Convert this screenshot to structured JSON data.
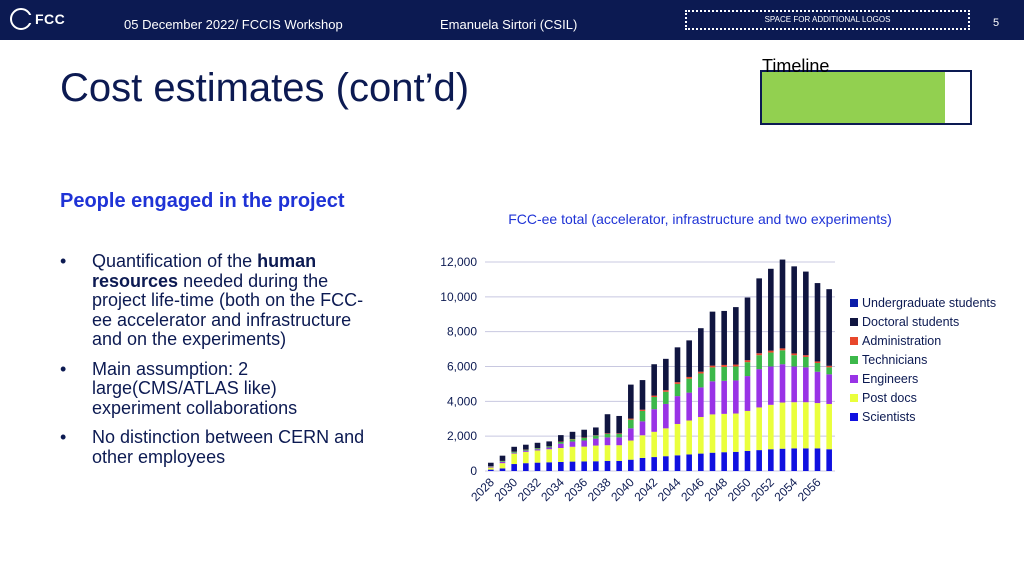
{
  "header": {
    "logo_text": "FCC",
    "date": "05 December 2022/ FCCIS Workshop",
    "author": "Emanuela Sirtori (CSIL)",
    "logos_placeholder": "SPACE FOR ADDITIONAL LOGOS",
    "page_number": "5"
  },
  "slide": {
    "title": "Cost estimates (cont’d)",
    "timeline_label": "Timeline",
    "timeline_progress": 0.88,
    "subtitle": "People engaged in the project",
    "bullet_marker": "•",
    "bullets": {
      "b1": {
        "pre": "Quantification of the ",
        "bold": "human resources",
        "post": " needed during the project life-time (both on the FCC-ee accelerator and infrastructure and on the experiments)"
      },
      "b2": "Main assumption: 2 large(CMS/ATLAS like) experiment collaborations",
      "b3": "No distinction between CERN and other employees"
    }
  },
  "colors": {
    "brand_navy": "#0c1a52",
    "subtitle_blue": "#1f33d6",
    "timeline_green": "#92d050"
  },
  "chart_data": {
    "type": "bar",
    "stacked": true,
    "title": "FCC-ee total (accelerator, infrastructure and two experiments)",
    "xlabel": "",
    "ylabel": "",
    "ylim": [
      0,
      12000
    ],
    "yticks": [
      "0",
      "2,000",
      "4,000",
      "6,000",
      "8,000",
      "10,000",
      "12,000"
    ],
    "grid": true,
    "legend_position": "right",
    "categories": [
      "2028",
      "2029",
      "2030",
      "2031",
      "2032",
      "2033",
      "2034",
      "2035",
      "2036",
      "2037",
      "2038",
      "2039",
      "2040",
      "2041",
      "2042",
      "2043",
      "2044",
      "2045",
      "2046",
      "2047",
      "2048",
      "2049",
      "2050",
      "2051",
      "2052",
      "2053",
      "2054",
      "2055",
      "2056",
      "2057"
    ],
    "series": [
      {
        "name": "Scientists",
        "color": "#1010e0",
        "values": [
          80,
          150,
          400,
          450,
          480,
          500,
          520,
          540,
          550,
          560,
          580,
          580,
          650,
          750,
          800,
          850,
          900,
          950,
          1000,
          1050,
          1080,
          1100,
          1150,
          1200,
          1250,
          1280,
          1300,
          1300,
          1300,
          1250
        ]
      },
      {
        "name": "Post docs",
        "color": "#eaff3c",
        "values": [
          120,
          300,
          600,
          650,
          700,
          750,
          800,
          850,
          850,
          900,
          900,
          900,
          1100,
          1300,
          1450,
          1600,
          1800,
          1950,
          2100,
          2200,
          2200,
          2200,
          2300,
          2450,
          2550,
          2650,
          2650,
          2650,
          2600,
          2600
        ]
      },
      {
        "name": "Engineers",
        "color": "#9933e6",
        "values": [
          50,
          80,
          50,
          70,
          70,
          100,
          250,
          300,
          350,
          400,
          450,
          450,
          700,
          800,
          1300,
          1400,
          1600,
          1600,
          1700,
          1900,
          1900,
          1900,
          2000,
          2200,
          2200,
          2200,
          2050,
          2000,
          1800,
          1700
        ]
      },
      {
        "name": "Technicians",
        "color": "#3cb84a",
        "values": [
          20,
          40,
          50,
          50,
          60,
          60,
          100,
          130,
          150,
          170,
          200,
          200,
          500,
          600,
          700,
          700,
          700,
          800,
          800,
          800,
          800,
          800,
          800,
          800,
          800,
          800,
          650,
          600,
          500,
          400
        ]
      },
      {
        "name": "Administration",
        "color": "#e8472b",
        "values": [
          5,
          10,
          10,
          10,
          10,
          10,
          20,
          20,
          20,
          20,
          30,
          30,
          60,
          70,
          80,
          90,
          100,
          100,
          100,
          100,
          110,
          110,
          110,
          110,
          110,
          110,
          100,
          100,
          90,
          90
        ]
      },
      {
        "name": "Doctoral students",
        "color": "#101540",
        "values": [
          200,
          300,
          280,
          280,
          300,
          280,
          370,
          410,
          450,
          450,
          1100,
          1000,
          1950,
          1700,
          1800,
          1800,
          2000,
          2100,
          2500,
          3100,
          3100,
          3300,
          3600,
          4300,
          4700,
          5100,
          5000,
          4800,
          4500,
          4400
        ]
      },
      {
        "name": "Undergraduate students",
        "color": "#0b1ca8",
        "values": [
          0,
          0,
          0,
          0,
          0,
          0,
          0,
          0,
          0,
          0,
          0,
          0,
          0,
          0,
          0,
          0,
          0,
          0,
          0,
          0,
          0,
          0,
          0,
          0,
          0,
          0,
          0,
          0,
          0,
          0
        ]
      }
    ]
  }
}
